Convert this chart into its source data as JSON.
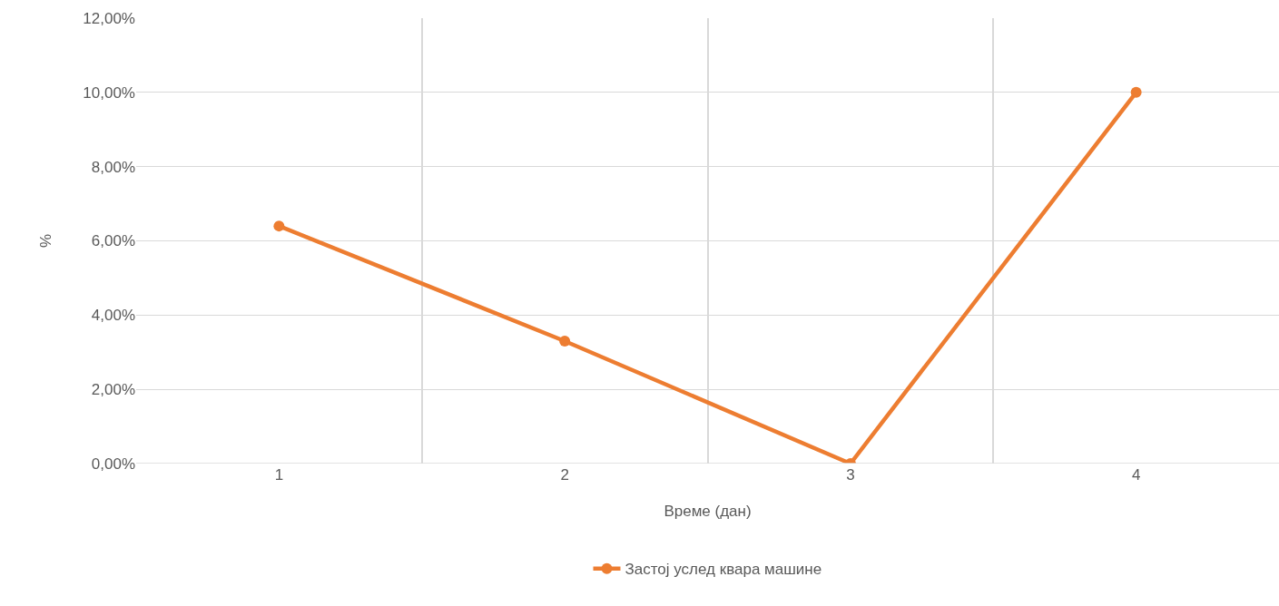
{
  "chart_data": {
    "type": "line",
    "xlabel": "Време (дан)",
    "ylabel": "%",
    "categories": [
      "1",
      "2",
      "3",
      "4"
    ],
    "series": [
      {
        "name": "Застој услед квара машине",
        "color": "#ed7d31",
        "values": [
          6.4,
          3.3,
          0,
          10
        ]
      }
    ],
    "ylim": [
      0,
      12
    ],
    "yticks": [
      {
        "value": 0,
        "label": "0,00%"
      },
      {
        "value": 2,
        "label": "2,00%"
      },
      {
        "value": 4,
        "label": "4,00%"
      },
      {
        "value": 6,
        "label": "6,00%"
      },
      {
        "value": 8,
        "label": "8,00%"
      },
      {
        "value": 10,
        "label": "10,00%"
      },
      {
        "value": 12,
        "label": "12,00%"
      }
    ],
    "grid": true,
    "legend": "bottom",
    "marker": "circle",
    "line_style": "solid"
  }
}
